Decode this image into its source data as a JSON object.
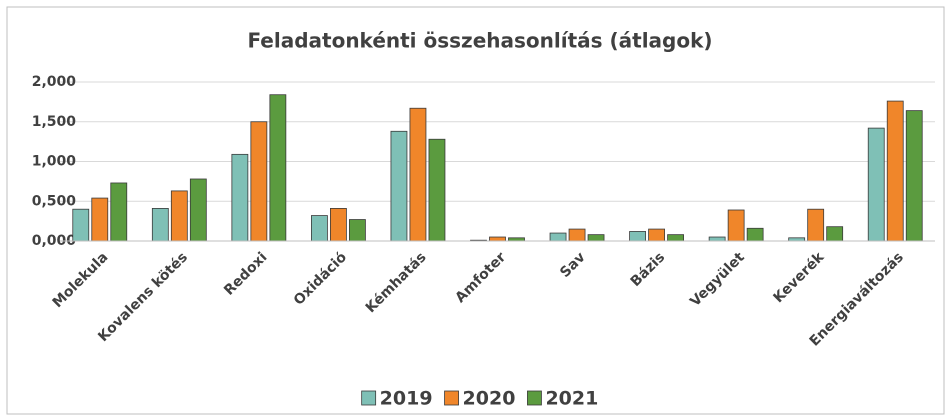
{
  "chart_data": {
    "type": "bar",
    "title": "Feladatonkénti összehasonlítás (átlagok)",
    "categories": [
      "Molekula",
      "Kovalens kötés",
      "Redoxi",
      "Oxidáció",
      "Kémhatás",
      "Amfoter",
      "Sav",
      "Bázis",
      "Vegyület",
      "Keverék",
      "Energiaváltozás"
    ],
    "series": [
      {
        "name": "2019",
        "color": "#7fc0b6",
        "values": [
          0.4,
          0.41,
          1.09,
          0.32,
          1.38,
          0.01,
          0.1,
          0.12,
          0.05,
          0.04,
          1.42
        ]
      },
      {
        "name": "2020",
        "color": "#f0862a",
        "values": [
          0.54,
          0.63,
          1.5,
          0.41,
          1.67,
          0.05,
          0.15,
          0.15,
          0.39,
          0.4,
          1.76
        ]
      },
      {
        "name": "2021",
        "color": "#5b9b3f",
        "values": [
          0.73,
          0.78,
          1.84,
          0.27,
          1.28,
          0.04,
          0.08,
          0.08,
          0.16,
          0.18,
          1.64
        ]
      }
    ],
    "ylim": [
      0,
      2
    ],
    "yticks": [
      {
        "value": 0,
        "label": "0,000"
      },
      {
        "value": 0.5,
        "label": "0,500"
      },
      {
        "value": 1,
        "label": "1,000"
      },
      {
        "value": 1.5,
        "label": "1,500"
      },
      {
        "value": 2,
        "label": "2,000"
      }
    ],
    "grid": true,
    "legend": "bottom"
  }
}
